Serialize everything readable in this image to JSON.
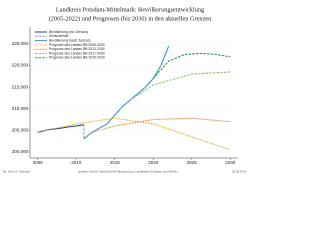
{
  "chart_data": {
    "type": "line",
    "title": "Landkreis Potsdam-Mittelmark: Bevölkerungsentwicklung",
    "subtitle": "(2005-2022) und Prognosen (bis 2030) in den aktuellen Grenzen",
    "xlim": [
      2004,
      2031
    ],
    "xticks": [
      2005,
      2010,
      2015,
      2020,
      2025,
      2030
    ],
    "ylim": [
      198600,
      228900
    ],
    "yticks": [
      {
        "value": 200000,
        "label": "200,000"
      },
      {
        "value": 205000,
        "label": "205,000"
      },
      {
        "value": 210000,
        "label": "210,000"
      },
      {
        "value": 215000,
        "label": "215,000"
      },
      {
        "value": 220000,
        "label": "220,000"
      },
      {
        "value": 225000,
        "label": "225,000"
      }
    ],
    "series": [
      {
        "name": "Bevölkerung (vor Zensus)",
        "color": "#1f3f8f",
        "style": "solid",
        "x": [
          2005,
          2006,
          2007,
          2008,
          2009,
          2010,
          2011
        ],
        "values": [
          204500,
          205000,
          205300,
          205500,
          205800,
          206000,
          206300
        ]
      },
      {
        "name": "Zensusfehler",
        "color": "#999999",
        "style": "dashed",
        "x": [
          2011,
          2011
        ],
        "values": [
          206300,
          203000
        ]
      },
      {
        "name": "Bevölkerung (nach Zensus)",
        "color": "#3b8fd9",
        "style": "solid",
        "x": [
          2011,
          2012,
          2013,
          2014,
          2015,
          2016,
          2017,
          2018,
          2019,
          2020,
          2021,
          2022
        ],
        "values": [
          203000,
          204500,
          205500,
          206500,
          208500,
          210500,
          212000,
          213500,
          215000,
          217000,
          220000,
          224500
        ]
      },
      {
        "name": "Prognose des Landes BB 2005-2030",
        "color": "#d9a000",
        "style": "dotted",
        "x": [
          2005,
          2010,
          2015,
          2020,
          2025,
          2030
        ],
        "values": [
          204500,
          206500,
          207800,
          206500,
          203500,
          200500
        ]
      },
      {
        "name": "Prognose des Landes BB 2012-2030",
        "color": "#e07020",
        "style": "dotted",
        "x": [
          2012,
          2015,
          2020,
          2025,
          2030
        ],
        "values": [
          204500,
          206000,
          207500,
          207800,
          207000
        ]
      },
      {
        "name": "Prognose des Landes BB 2017-2030",
        "color": "#90c060",
        "style": "dashed",
        "x": [
          2017,
          2020,
          2025,
          2030
        ],
        "values": [
          212000,
          215500,
          218000,
          218500
        ]
      },
      {
        "name": "Prognose des Landes BB 2020-2030",
        "color": "#2e9a3a",
        "style": "dashed",
        "x": [
          2020,
          2022,
          2024,
          2026,
          2028,
          2030
        ],
        "values": [
          217000,
          221000,
          222500,
          222800,
          222600,
          222000
        ]
      }
    ],
    "author": "By: Hans G. Oberlack",
    "source": "Quellen: Amt für Statistik Berlin-Brandenburg, Landesamt für Bauen und Verkehr",
    "date": "25.06.2024"
  }
}
